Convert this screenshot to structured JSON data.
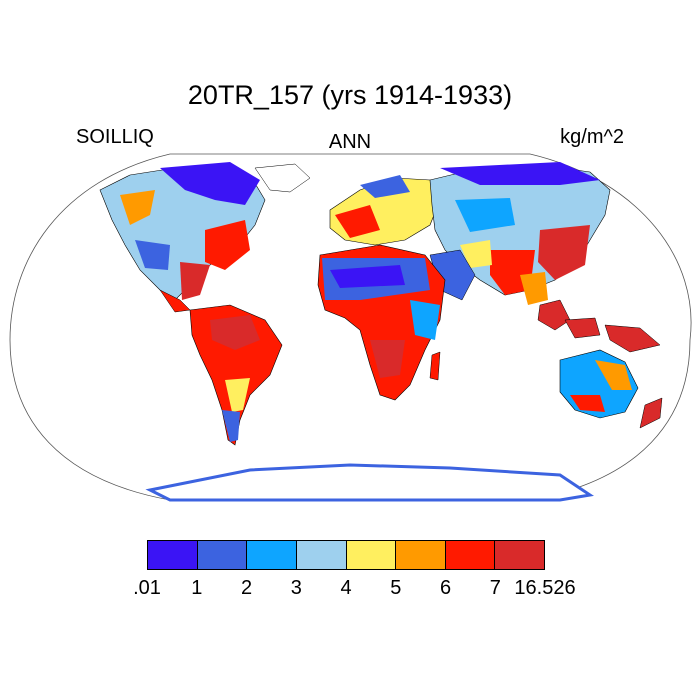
{
  "title": "20TR_157 (yrs 1914-1933)",
  "left_label": "SOILLIQ",
  "center_label": "ANN",
  "units_label": "kg/m^2",
  "colorbar": {
    "colors": [
      "#3b14f5",
      "#3c63e0",
      "#0ea5ff",
      "#9ed0ee",
      "#ffef5f",
      "#ff9a00",
      "#ff1a00",
      "#d92a2a"
    ],
    "labels": [
      ".01",
      "1",
      "2",
      "3",
      "4",
      "5",
      "6",
      "7",
      "16.526"
    ]
  },
  "map": {
    "projection": "Robinson",
    "ocean_color": "#ffffff",
    "land_outline_color": "#000000"
  }
}
